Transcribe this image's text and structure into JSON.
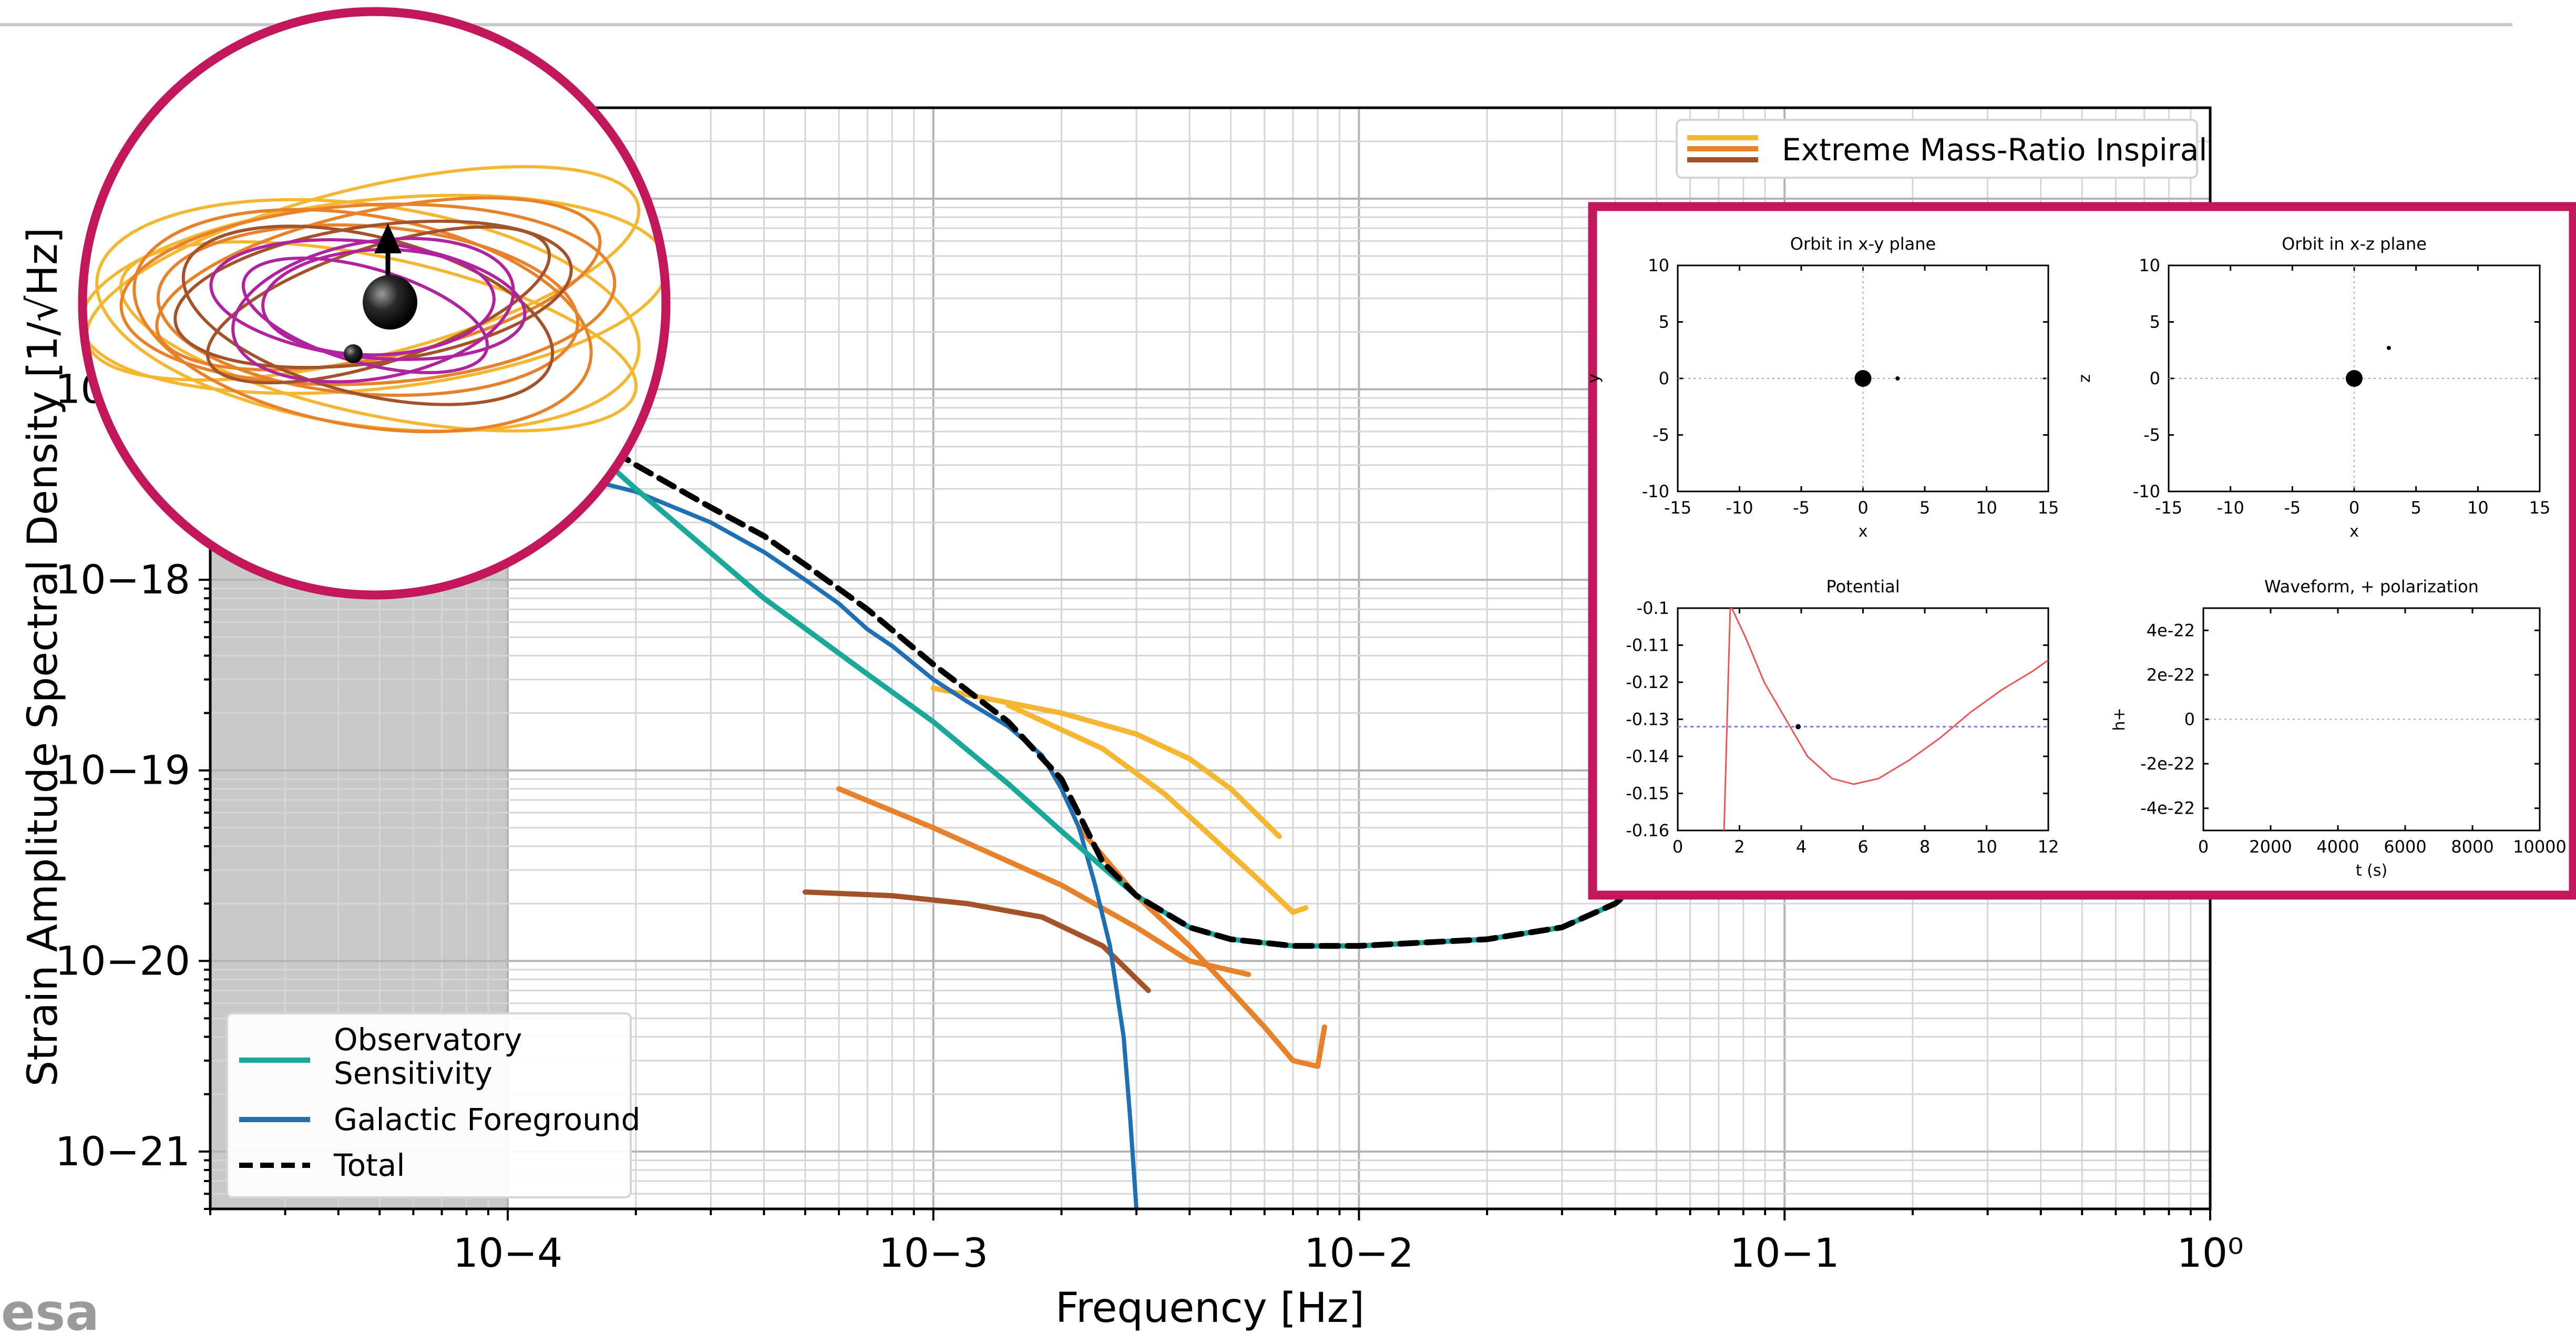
{
  "logo": {
    "text": "esa"
  },
  "colors": {
    "sensitivity": "#1aa89a",
    "foreground": "#1f6fb5",
    "total": "#000000",
    "emri_light": "#f5b731",
    "emri_mid": "#e8822a",
    "emri_dark": "#a3522a",
    "frame": "#c2185b",
    "orbit_magenta": "#b0229e",
    "potential_curve": "#ee5555",
    "energy_line": "#7777ff"
  },
  "chart_data": [
    {
      "type": "line",
      "title": "",
      "xlabel": "Frequency [Hz]",
      "ylabel": "Strain Amplitude Spectral Density [1/√Hz]",
      "xscale": "log",
      "yscale": "log",
      "xlim": [
        2e-05,
        1
      ],
      "ylim": [
        5e-22,
        3e-16
      ],
      "grid": true,
      "xticks": [
        {
          "v": 0.0001,
          "label": "10−4"
        },
        {
          "v": 0.001,
          "label": "10−3"
        },
        {
          "v": 0.01,
          "label": "10−2"
        },
        {
          "v": 0.1,
          "label": "10−1"
        },
        {
          "v": 1,
          "label": "10⁰"
        }
      ],
      "yticks": [
        {
          "v": 1e-21,
          "label": "10−21"
        },
        {
          "v": 1e-20,
          "label": "10−20"
        },
        {
          "v": 1e-19,
          "label": "10−19"
        },
        {
          "v": 1e-18,
          "label": "10−18"
        },
        {
          "v": 1e-17,
          "label": "10−17"
        }
      ],
      "shaded_region": {
        "x": [
          2e-05,
          0.0001
        ]
      },
      "legend_lower_left": [
        "Observatory Sensitivity",
        "Galactic Foreground",
        "Total"
      ],
      "legend_upper_right": [
        "Extreme Mass-Ratio Inspiral"
      ],
      "series": [
        {
          "name": "Observatory Sensitivity",
          "x": [
            0.0001,
            0.0002,
            0.0004,
            0.0007,
            0.001,
            0.0015,
            0.002,
            0.0025,
            0.003,
            0.004,
            0.005,
            0.007,
            0.01,
            0.02,
            0.03,
            0.04,
            0.05,
            0.06,
            0.07,
            0.08,
            0.09,
            0.1,
            0.11
          ],
          "y": [
            1.2e-17,
            3e-18,
            8e-19,
            3.2e-19,
            1.8e-19,
            8.5e-20,
            4.8e-20,
            3.1e-20,
            2.2e-20,
            1.5e-20,
            1.3e-20,
            1.2e-20,
            1.2e-20,
            1.3e-20,
            1.5e-20,
            2e-20,
            3e-20,
            5e-20,
            4e-20,
            3.3e-20,
            3.8e-20,
            5e-20,
            6e-20
          ]
        },
        {
          "name": "Galactic Foreground",
          "x": [
            0.0001,
            0.00015,
            0.0002,
            0.0003,
            0.0004,
            0.0005,
            0.0006,
            0.0007,
            0.0008,
            0.001,
            0.0012,
            0.0015,
            0.0018,
            0.002,
            0.0022,
            0.0024,
            0.0026,
            0.0028,
            0.0029,
            0.003
          ],
          "y": [
            4e-18,
            3.4e-18,
            2.9e-18,
            2e-18,
            1.4e-18,
            1e-18,
            7.5e-19,
            5.5e-19,
            4.5e-19,
            3e-19,
            2.3e-19,
            1.7e-19,
            1.2e-19,
            8e-20,
            5e-20,
            2.5e-20,
            1.2e-20,
            4e-21,
            1.5e-21,
            5e-22
          ]
        },
        {
          "name": "Total",
          "x": [
            0.0001,
            0.00015,
            0.0002,
            0.0003,
            0.0004,
            0.0005,
            0.0007,
            0.001,
            0.0015,
            0.002,
            0.0025,
            0.003,
            0.004,
            0.005,
            0.007,
            0.01,
            0.02,
            0.03,
            0.04,
            0.05,
            0.06,
            0.07,
            0.08,
            0.09,
            0.1,
            0.11
          ],
          "y": [
            1.2e-17,
            6e-18,
            4e-18,
            2.4e-18,
            1.7e-18,
            1.2e-18,
            7e-19,
            3.6e-19,
            1.8e-19,
            9e-20,
            3.3e-20,
            2.2e-20,
            1.5e-20,
            1.3e-20,
            1.2e-20,
            1.2e-20,
            1.3e-20,
            1.5e-20,
            2e-20,
            3e-20,
            5e-20,
            4e-20,
            3.3e-20,
            3.8e-20,
            5e-20,
            6e-20
          ]
        },
        {
          "name": "EMRI track 1",
          "x": [
            0.001,
            0.002,
            0.003,
            0.004,
            0.005,
            0.0065
          ],
          "y": [
            2.7e-19,
            2e-19,
            1.55e-19,
            1.15e-19,
            8e-20,
            4.5e-20
          ]
        },
        {
          "name": "EMRI track 2",
          "x": [
            0.0015,
            0.0025,
            0.0035,
            0.0045,
            0.006,
            0.007,
            0.0075
          ],
          "y": [
            2.2e-19,
            1.3e-19,
            7.5e-20,
            4.5e-20,
            2.5e-20,
            1.8e-20,
            1.9e-20
          ]
        },
        {
          "name": "EMRI track 3",
          "x": [
            0.0022,
            0.003,
            0.004,
            0.005,
            0.006,
            0.007,
            0.008,
            0.0083
          ],
          "y": [
            5e-20,
            2.2e-20,
            1.2e-20,
            7e-21,
            4.5e-21,
            3e-21,
            2.8e-21,
            4.5e-21
          ]
        },
        {
          "name": "EMRI track 4",
          "x": [
            0.0006,
            0.001,
            0.002,
            0.003,
            0.004,
            0.0055
          ],
          "y": [
            8e-20,
            5e-20,
            2.5e-20,
            1.5e-20,
            1e-20,
            8.5e-21
          ]
        },
        {
          "name": "EMRI track 5",
          "x": [
            0.0005,
            0.0008,
            0.0012,
            0.0018,
            0.0025,
            0.0032
          ],
          "y": [
            2.3e-20,
            2.2e-20,
            2e-20,
            1.7e-20,
            1.2e-20,
            7e-21
          ]
        }
      ]
    },
    {
      "type": "scatter",
      "title": "Orbit in x-y plane",
      "xlabel": "x",
      "ylabel": "y",
      "xlim": [
        -15,
        15
      ],
      "ylim": [
        -10,
        10
      ],
      "xticks": [
        -15,
        -10,
        -5,
        0,
        5,
        10,
        15
      ],
      "yticks": [
        -10,
        -5,
        0,
        5,
        10
      ],
      "points": [
        {
          "x": 0,
          "y": 0,
          "role": "central body"
        },
        {
          "x": 2.8,
          "y": 0,
          "role": "orbiter"
        }
      ]
    },
    {
      "type": "scatter",
      "title": "Orbit in x-z plane",
      "xlabel": "x",
      "ylabel": "z",
      "xlim": [
        -15,
        15
      ],
      "ylim": [
        -10,
        10
      ],
      "xticks": [
        -15,
        -10,
        -5,
        0,
        5,
        10,
        15
      ],
      "yticks": [
        -10,
        -5,
        0,
        5,
        10
      ],
      "points": [
        {
          "x": 0,
          "y": 0,
          "role": "central body"
        },
        {
          "x": 2.8,
          "y": 2.7,
          "role": "orbiter"
        }
      ]
    },
    {
      "type": "line",
      "title": "Potential",
      "xlabel": "",
      "ylabel": "",
      "xlim": [
        0,
        12
      ],
      "ylim": [
        -0.16,
        -0.1
      ],
      "xticks": [
        0,
        2,
        4,
        6,
        8,
        10,
        12
      ],
      "yticks": [
        -0.16,
        -0.15,
        -0.14,
        -0.13,
        -0.12,
        -0.11,
        -0.1
      ],
      "energy_level": -0.132,
      "marker": {
        "x": 3.9,
        "y": -0.132
      },
      "series": [
        {
          "name": "",
          "x": [
            1.5,
            1.55,
            1.6,
            1.65,
            1.7
          ],
          "y": [
            -0.16,
            -0.145,
            -0.13,
            -0.115,
            -0.1
          ]
        },
        {
          "name": "",
          "x": [
            1.75,
            2.2,
            2.8,
            3.5,
            4.2,
            5,
            5.7,
            6.5,
            7.5,
            8.5,
            9.5,
            10.5,
            11.5,
            12
          ],
          "y": [
            -0.1,
            -0.108,
            -0.12,
            -0.13,
            -0.14,
            -0.146,
            -0.1475,
            -0.146,
            -0.141,
            -0.135,
            -0.128,
            -0.122,
            -0.117,
            -0.114
          ]
        }
      ]
    },
    {
      "type": "line",
      "title": "Waveform, + polarization",
      "xlabel": "t (s)",
      "ylabel": "h+",
      "xlim": [
        0,
        10000
      ],
      "ylim": [
        -5e-22,
        5e-22
      ],
      "xticks": [
        {
          "v": 0,
          "label": "0"
        },
        {
          "v": 2000,
          "label": "2000"
        },
        {
          "v": 4000,
          "label": "4000"
        },
        {
          "v": 6000,
          "label": "6000"
        },
        {
          "v": 8000,
          "label": "8000"
        },
        {
          "v": 10000,
          "label": "10000"
        }
      ],
      "yticks": [
        {
          "v": 4e-22,
          "label": "4e-22"
        },
        {
          "v": 2e-22,
          "label": "2e-22"
        },
        {
          "v": 0,
          "label": "0"
        },
        {
          "v": -2e-22,
          "label": "-2e-22"
        },
        {
          "v": -4e-22,
          "label": "-4e-22"
        }
      ],
      "series": []
    }
  ]
}
